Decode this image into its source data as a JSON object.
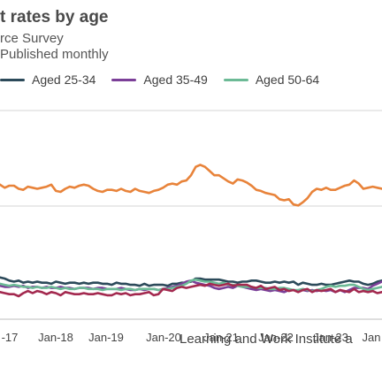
{
  "header": {
    "title": "t rates by age",
    "subtitle": "rce Survey",
    "note": "Published monthly"
  },
  "legend": {
    "items": [
      {
        "label": "Aged 25-34",
        "color": "#2c4a5a"
      },
      {
        "label": "Aged 35-49",
        "color": "#7b3f98"
      },
      {
        "label": "Aged 50-64",
        "color": "#6cba96"
      }
    ]
  },
  "source": "Learning and Work Institute a",
  "chart_data": {
    "type": "line",
    "title": "t rates by age",
    "xlabel": "",
    "ylabel": "",
    "x_ticks": [
      "-17",
      "Jan-18",
      "Jan-19",
      "Jan-20",
      "Jan-21",
      "Jan-22",
      "Jan-23",
      "Jan"
    ],
    "grid": true,
    "legend_position": "top",
    "colors": {
      "orange": "#e8833a",
      "crimson": "#a3294f"
    },
    "series": [
      {
        "name": "",
        "color": "#e8833a",
        "values": [
          12.9,
          12.6,
          12.8,
          12.8,
          12.5,
          12.4,
          12.7,
          12.6,
          12.5,
          12.6,
          12.7,
          12.9,
          12.3,
          12.2,
          12.5,
          12.7,
          12.6,
          12.8,
          12.9,
          12.8,
          12.5,
          12.3,
          12.2,
          12.4,
          12.4,
          12.3,
          12.5,
          12.3,
          12.2,
          12.5,
          12.3,
          12.2,
          12.1,
          12.3,
          12.4,
          12.6,
          12.9,
          13.0,
          12.9,
          13.2,
          13.3,
          13.8,
          14.6,
          14.8,
          14.6,
          14.2,
          13.8,
          13.8,
          13.5,
          13.2,
          13.0,
          13.4,
          13.3,
          13.1,
          12.8,
          12.4,
          12.3,
          12.1,
          12.0,
          11.9,
          11.5,
          11.4,
          11.5,
          11.0,
          10.9,
          11.2,
          11.6,
          12.2,
          12.5,
          12.4,
          12.6,
          12.4,
          12.4,
          12.6,
          12.8,
          12.9,
          13.3,
          13.0,
          12.5,
          12.6,
          12.7,
          12.6,
          12.5
        ]
      },
      {
        "name": "Aged 25-34",
        "color": "#2c4a5a",
        "values": [
          4.0,
          3.9,
          3.7,
          3.6,
          3.7,
          3.5,
          3.6,
          3.5,
          3.6,
          3.5,
          3.5,
          3.4,
          3.6,
          3.5,
          3.4,
          3.5,
          3.5,
          3.4,
          3.5,
          3.4,
          3.5,
          3.5,
          3.4,
          3.4,
          3.3,
          3.5,
          3.4,
          3.4,
          3.3,
          3.3,
          3.2,
          3.4,
          3.2,
          3.3,
          3.3,
          3.3,
          3.2,
          3.4,
          3.4,
          3.5,
          3.5,
          3.6,
          3.9,
          3.9,
          3.8,
          3.8,
          3.8,
          3.8,
          3.7,
          3.6,
          3.6,
          3.5,
          3.6,
          3.6,
          3.7,
          3.7,
          3.6,
          3.5,
          3.5,
          3.6,
          3.5,
          3.6,
          3.5,
          3.6,
          3.3,
          3.5,
          3.4,
          3.3,
          3.3,
          3.4,
          3.3,
          3.3,
          3.4,
          3.5,
          3.6,
          3.7,
          3.6,
          3.6,
          3.4,
          3.3,
          3.4,
          3.6,
          3.7
        ]
      },
      {
        "name": "Aged 35-49",
        "color": "#7b3f98",
        "values": [
          3.2,
          3.1,
          3.1,
          3.2,
          3.1,
          3.2,
          3.0,
          3.1,
          3.1,
          3.0,
          3.1,
          3.0,
          3.0,
          3.1,
          3.0,
          3.0,
          2.9,
          3.0,
          3.0,
          3.0,
          2.9,
          3.0,
          3.0,
          2.9,
          2.9,
          2.9,
          3.0,
          2.9,
          2.8,
          2.8,
          2.9,
          2.8,
          2.9,
          2.9,
          2.8,
          2.9,
          3.0,
          3.1,
          3.2,
          3.4,
          3.6,
          3.7,
          3.5,
          3.4,
          3.3,
          3.2,
          3.0,
          2.9,
          3.0,
          3.1,
          3.0,
          3.2,
          3.1,
          3.0,
          2.9,
          2.8,
          2.9,
          2.8,
          2.7,
          2.8,
          2.7,
          2.6,
          2.8,
          2.8,
          2.7,
          2.8,
          2.7,
          2.8,
          2.7,
          2.8,
          2.7,
          2.8,
          2.6,
          2.8,
          2.6,
          2.8,
          3.0,
          3.0,
          3.0,
          2.9,
          3.2,
          3.4,
          3.6
        ]
      },
      {
        "name": "Aged 50-64",
        "color": "#6cba96",
        "values": [
          3.4,
          3.3,
          3.2,
          3.3,
          3.2,
          3.1,
          3.1,
          3.0,
          3.1,
          3.0,
          3.0,
          3.1,
          3.0,
          2.9,
          3.0,
          2.9,
          2.9,
          3.0,
          3.0,
          2.9,
          2.9,
          2.9,
          2.8,
          2.9,
          2.9,
          2.9,
          2.8,
          2.9,
          2.9,
          2.8,
          2.9,
          2.9,
          2.9,
          2.9,
          2.8,
          2.9,
          2.9,
          3.0,
          3.1,
          3.2,
          3.4,
          3.7,
          3.8,
          3.7,
          3.6,
          3.6,
          3.5,
          3.4,
          3.5,
          3.3,
          3.3,
          3.2,
          3.1,
          3.1,
          3.1,
          3.0,
          3.0,
          3.0,
          2.9,
          2.9,
          3.0,
          3.0,
          2.9,
          2.8,
          2.8,
          2.9,
          2.8,
          2.7,
          2.8,
          2.9,
          3.1,
          3.2,
          3.1,
          3.2,
          3.2,
          3.3,
          3.3,
          3.1,
          2.9,
          2.8,
          2.9,
          3.0,
          3.1
        ]
      },
      {
        "name": "",
        "color": "#a3294f",
        "values": [
          2.6,
          2.5,
          2.4,
          2.4,
          2.2,
          2.5,
          2.7,
          2.5,
          2.7,
          2.6,
          2.4,
          2.6,
          2.5,
          2.3,
          2.6,
          2.5,
          2.4,
          2.4,
          2.5,
          2.4,
          2.4,
          2.5,
          2.4,
          2.3,
          2.3,
          2.5,
          2.4,
          2.5,
          2.3,
          2.4,
          2.4,
          2.5,
          2.6,
          2.3,
          2.4,
          2.9,
          2.8,
          2.7,
          3.0,
          3.1,
          3.0,
          3.1,
          3.2,
          3.3,
          3.2,
          3.4,
          3.3,
          3.2,
          3.3,
          3.4,
          3.2,
          3.3,
          3.3,
          3.3,
          3.1,
          3.0,
          3.2,
          2.9,
          3.0,
          3.1,
          2.8,
          2.9,
          2.7,
          2.8,
          2.6,
          2.8,
          2.9,
          2.6,
          2.8,
          2.7,
          2.8,
          2.9,
          2.6,
          2.8,
          2.7,
          2.6,
          2.9,
          2.6,
          2.7,
          2.6,
          2.7,
          2.5,
          2.6
        ]
      }
    ]
  }
}
